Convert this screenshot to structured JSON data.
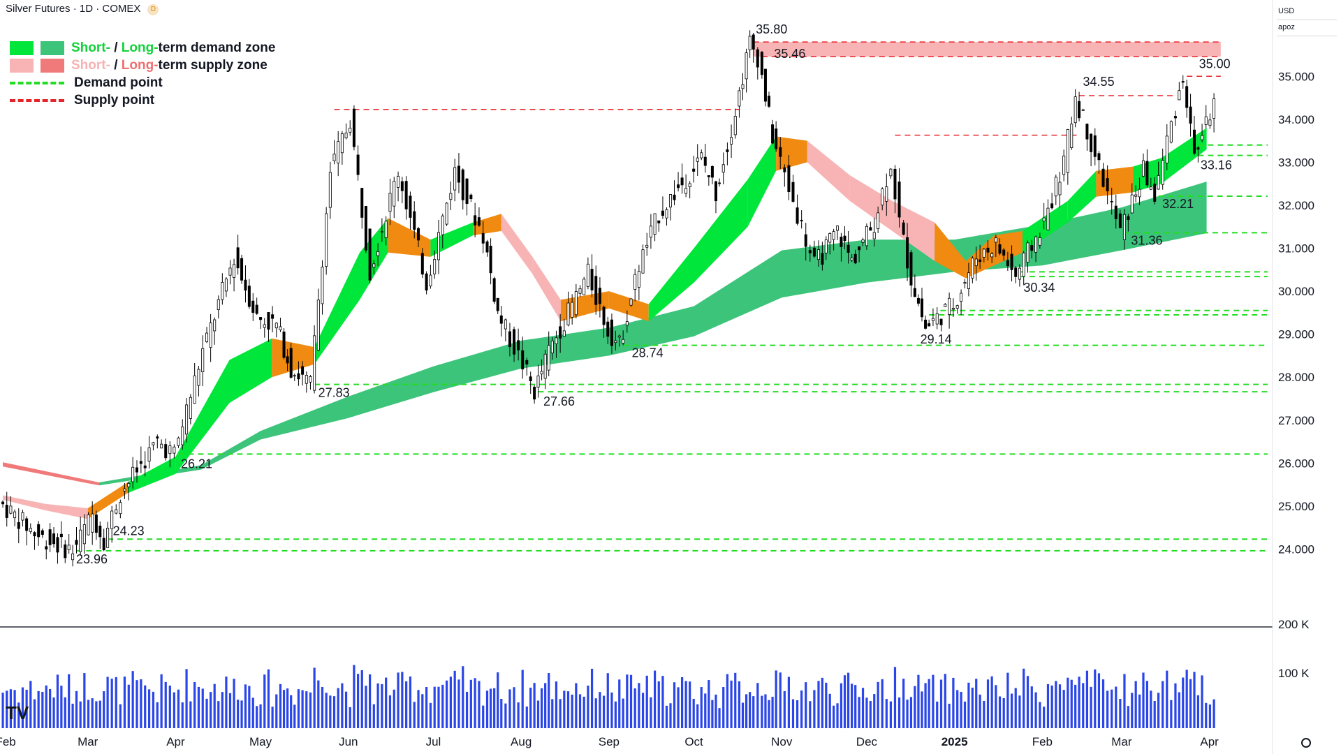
{
  "title": "Silver Futures · 1D · COMEX",
  "title_badge": "D",
  "currency": "USD",
  "scale_label": "apoz",
  "legend": {
    "row1": {
      "short": "Short-",
      "sep": " / ",
      "long": "Long-",
      "rest": "term demand zone"
    },
    "row2": {
      "short": "Short-",
      "sep": " / ",
      "long": "Long-",
      "rest": "term supply zone"
    },
    "row3": "Demand point",
    "row4": "Supply point"
  },
  "colors": {
    "up": "#ffffff",
    "down": "#000000",
    "short_demand": "#00e63a",
    "long_demand": "#3cc47a",
    "short_supply": "#f8b4b4",
    "long_supply": "#f07a7a",
    "transition": "#f08a10",
    "demand_line": "#22dd22",
    "supply_line": "#e5252a",
    "volume": "#2a45e8"
  },
  "chart_data": {
    "type": "candlestick",
    "title": "Silver Futures · 1D · COMEX",
    "x_axis": {
      "labels": [
        "Feb",
        "Mar",
        "Apr",
        "May",
        "Jun",
        "Jul",
        "Aug",
        "Sep",
        "Oct",
        "Nov",
        "Dec",
        "2025",
        "Feb",
        "Mar",
        "Apr"
      ]
    },
    "y_axis": {
      "ticks": [
        "24.000",
        "25.000",
        "26.000",
        "27.000",
        "28.000",
        "29.000",
        "30.000",
        "31.000",
        "32.000",
        "33.000",
        "34.000",
        "35.000"
      ],
      "range": [
        23.3,
        36.3
      ]
    },
    "volume_axis": {
      "ticks": [
        "100 K",
        "200 K"
      ]
    },
    "price_path": [
      [
        "2024-01-31",
        25.1
      ],
      [
        "2024-02-14",
        24.3
      ],
      [
        "2024-02-26",
        23.96
      ],
      [
        "2024-03-04",
        24.8
      ],
      [
        "2024-03-08",
        24.23
      ],
      [
        "2024-03-14",
        25.3
      ],
      [
        "2024-03-27",
        26.5
      ],
      [
        "2024-04-02",
        26.21
      ],
      [
        "2024-04-12",
        28.6
      ],
      [
        "2024-04-23",
        30.8
      ],
      [
        "2024-05-01",
        29.4
      ],
      [
        "2024-05-08",
        29.2
      ],
      [
        "2024-05-13",
        28.2
      ],
      [
        "2024-05-20",
        27.83
      ],
      [
        "2024-05-27",
        32.8
      ],
      [
        "2024-06-03",
        34.0
      ],
      [
        "2024-06-10",
        30.5
      ],
      [
        "2024-06-20",
        32.8
      ],
      [
        "2024-06-30",
        30.2
      ],
      [
        "2024-07-10",
        32.8
      ],
      [
        "2024-07-20",
        31.3
      ],
      [
        "2024-07-25",
        29.5
      ],
      [
        "2024-08-03",
        28.3
      ],
      [
        "2024-08-07",
        27.66
      ],
      [
        "2024-08-12",
        28.6
      ],
      [
        "2024-08-26",
        30.4
      ],
      [
        "2024-09-02",
        29.1
      ],
      [
        "2024-09-06",
        28.74
      ],
      [
        "2024-09-13",
        30.6
      ],
      [
        "2024-09-20",
        31.8
      ],
      [
        "2024-10-05",
        33.1
      ],
      [
        "2024-10-10",
        32.3
      ],
      [
        "2024-10-17",
        34.2
      ],
      [
        "2024-10-22",
        35.8
      ],
      [
        "2024-10-25",
        35.46
      ],
      [
        "2024-10-30",
        33.6
      ],
      [
        "2024-11-05",
        32.4
      ],
      [
        "2024-11-14",
        30.6
      ],
      [
        "2024-11-22",
        31.4
      ],
      [
        "2024-11-27",
        30.7
      ],
      [
        "2024-12-05",
        31.6
      ],
      [
        "2024-12-11",
        33.0
      ],
      [
        "2024-12-14",
        31.6
      ],
      [
        "2024-12-18",
        30.3
      ],
      [
        "2024-12-23",
        29.14
      ],
      [
        "2025-01-02",
        29.7
      ],
      [
        "2025-01-10",
        30.8
      ],
      [
        "2025-01-17",
        31.1
      ],
      [
        "2025-01-24",
        30.34
      ],
      [
        "2025-02-03",
        31.6
      ],
      [
        "2025-02-10",
        33.0
      ],
      [
        "2025-02-14",
        34.55
      ],
      [
        "2025-02-21",
        33.2
      ],
      [
        "2025-03-02",
        31.36
      ],
      [
        "2025-03-10",
        32.8
      ],
      [
        "2025-03-14",
        32.21
      ],
      [
        "2025-03-20",
        33.9
      ],
      [
        "2025-03-24",
        35.0
      ],
      [
        "2025-03-28",
        33.16
      ],
      [
        "2025-04-04",
        34.4
      ]
    ],
    "annotations": [
      {
        "label": "23.96",
        "date": "2024-02-26",
        "price": 23.96
      },
      {
        "label": "24.23",
        "date": "2024-03-08",
        "price": 24.23
      },
      {
        "label": "26.21",
        "date": "2024-04-02",
        "price": 26.21
      },
      {
        "label": "27.83",
        "date": "2024-05-20",
        "price": 27.83
      },
      {
        "label": "27.66",
        "date": "2024-08-07",
        "price": 27.66
      },
      {
        "label": "28.74",
        "date": "2024-09-06",
        "price": 28.74
      },
      {
        "label": "35.80",
        "date": "2024-10-22",
        "price": 35.8
      },
      {
        "label": "35.46",
        "date": "2024-10-25",
        "price": 35.46
      },
      {
        "label": "29.14",
        "date": "2024-12-23",
        "price": 29.14
      },
      {
        "label": "30.34",
        "date": "2025-01-24",
        "price": 30.34
      },
      {
        "label": "34.55",
        "date": "2025-02-14",
        "price": 34.55
      },
      {
        "label": "31.36",
        "date": "2025-03-02",
        "price": 31.36
      },
      {
        "label": "32.21",
        "date": "2025-03-14",
        "price": 32.21
      },
      {
        "label": "35.00",
        "date": "2025-03-24",
        "price": 35.0
      },
      {
        "label": "33.16",
        "date": "2025-03-28",
        "price": 33.16
      }
    ],
    "demand_lines": [
      {
        "from": "2024-02-26",
        "price": 23.96
      },
      {
        "from": "2024-03-08",
        "price": 24.23
      },
      {
        "from": "2024-04-02",
        "price": 26.21
      },
      {
        "from": "2024-05-20",
        "price": 27.83
      },
      {
        "from": "2024-08-07",
        "price": 27.66
      },
      {
        "from": "2024-09-06",
        "price": 28.74
      },
      {
        "from": "2024-12-23",
        "price": 29.45
      },
      {
        "from": "2024-12-27",
        "price": 29.55
      },
      {
        "from": "2025-01-24",
        "price": 30.34
      },
      {
        "from": "2025-01-24",
        "price": 30.45
      },
      {
        "from": "2025-03-02",
        "price": 31.36
      },
      {
        "from": "2025-03-14",
        "price": 32.21
      },
      {
        "from": "2025-03-28",
        "price": 33.16
      },
      {
        "from": "2025-03-28",
        "price": 33.4
      }
    ],
    "supply_lines": [
      {
        "from": "2024-05-27",
        "to": "2024-10-17",
        "price": 34.23
      },
      {
        "from": "2024-12-11",
        "to": "2025-02-14",
        "price": 33.63
      },
      {
        "from": "2025-02-14",
        "to": "2025-03-20",
        "price": 34.55
      },
      {
        "from": "2025-03-24",
        "to": "2025-04-05",
        "price": 35.0
      },
      {
        "from": "2024-10-22",
        "to": "2025-04-05",
        "price": 35.8
      },
      {
        "from": "2024-10-25",
        "to": "2025-04-05",
        "price": 35.46
      }
    ],
    "supply_zone": {
      "from": "2024-10-22",
      "to": "2025-04-05",
      "top": 35.8,
      "bottom": 35.46
    },
    "long_term_band": [
      [
        "2024-01-31",
        26.02,
        25.92
      ],
      [
        "2024-03-05",
        25.55,
        25.48
      ],
      [
        "2024-04-10",
        25.95,
        25.85
      ],
      [
        "2024-05-01",
        26.75,
        26.55
      ],
      [
        "2024-06-01",
        27.55,
        27.05
      ],
      [
        "2024-07-01",
        28.25,
        27.65
      ],
      [
        "2024-08-01",
        28.85,
        28.2
      ],
      [
        "2024-09-01",
        29.15,
        28.5
      ],
      [
        "2024-10-01",
        29.65,
        28.95
      ],
      [
        "2024-11-01",
        30.95,
        29.85
      ],
      [
        "2024-12-01",
        31.2,
        30.2
      ],
      [
        "2025-01-01",
        31.2,
        30.45
      ],
      [
        "2025-02-01",
        31.55,
        30.6
      ],
      [
        "2025-03-01",
        31.95,
        30.95
      ],
      [
        "2025-03-31",
        32.55,
        31.35
      ]
    ],
    "short_term_band": [
      [
        "2024-01-31",
        25.25,
        25.15
      ],
      [
        "2024-02-15",
        25.05,
        24.9
      ],
      [
        "2024-03-01",
        24.95,
        24.7
      ],
      [
        "2024-03-15",
        25.55,
        25.3
      ],
      [
        "2024-04-01",
        26.15,
        25.75
      ],
      [
        "2024-04-20",
        28.4,
        27.4
      ],
      [
        "2024-05-05",
        28.9,
        28.0
      ],
      [
        "2024-05-20",
        28.7,
        28.3
      ],
      [
        "2024-06-05",
        30.9,
        29.8
      ],
      [
        "2024-06-15",
        31.7,
        30.9
      ],
      [
        "2024-06-30",
        31.2,
        30.8
      ],
      [
        "2024-07-15",
        31.6,
        31.3
      ],
      [
        "2024-07-25",
        31.8,
        31.4
      ],
      [
        "2024-08-05",
        30.8,
        30.4
      ],
      [
        "2024-08-15",
        29.8,
        29.3
      ],
      [
        "2024-09-01",
        30.0,
        29.6
      ],
      [
        "2024-09-15",
        29.7,
        29.3
      ],
      [
        "2024-10-01",
        31.0,
        30.2
      ],
      [
        "2024-10-20",
        32.6,
        31.5
      ],
      [
        "2024-10-30",
        33.6,
        32.8
      ],
      [
        "2024-11-10",
        33.5,
        33.0
      ],
      [
        "2024-11-25",
        32.7,
        32.1
      ],
      [
        "2024-12-10",
        32.1,
        31.4
      ],
      [
        "2024-12-25",
        31.6,
        30.7
      ],
      [
        "2025-01-05",
        30.7,
        30.3
      ],
      [
        "2025-01-15",
        31.3,
        30.6
      ],
      [
        "2025-01-25",
        31.4,
        30.9
      ],
      [
        "2025-02-10",
        32.1,
        31.6
      ],
      [
        "2025-02-20",
        32.8,
        32.2
      ],
      [
        "2025-03-05",
        32.9,
        32.3
      ],
      [
        "2025-03-15",
        33.1,
        32.5
      ],
      [
        "2025-03-31",
        33.8,
        33.3
      ]
    ]
  }
}
